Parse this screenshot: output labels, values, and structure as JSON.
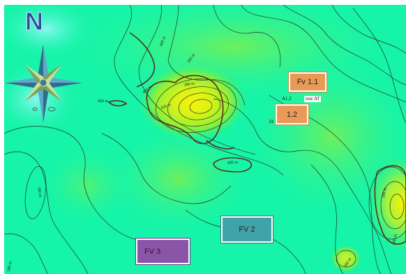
{
  "map": {
    "colors": {
      "base": "#15f4a9",
      "cyan_glow": "#6ff6ee",
      "green": "#4ef07a",
      "lime": "#b6f23a",
      "yellow": "#f7f20a",
      "contour": "#223322",
      "main_contour": "#5a2a18"
    },
    "compass": {
      "label": "N"
    },
    "contour_labels": {
      "a": "400 m",
      "b": "360 m",
      "c": "400 m",
      "d": "380 m",
      "e": "400 m",
      "f": "420 m",
      "g": "400 m",
      "h": "380 m",
      "i": "380 m",
      "j": "400 m",
      "k": "380 m",
      "l": "380 m"
    },
    "boxes": {
      "fv11": "Fv 1.1",
      "fv12": "1.2",
      "fv2": "FV 2",
      "fv3": "FV 3"
    },
    "small_labels": {
      "a12": "A1.2",
      "rete": "rete AT",
      "num34": "34"
    }
  }
}
